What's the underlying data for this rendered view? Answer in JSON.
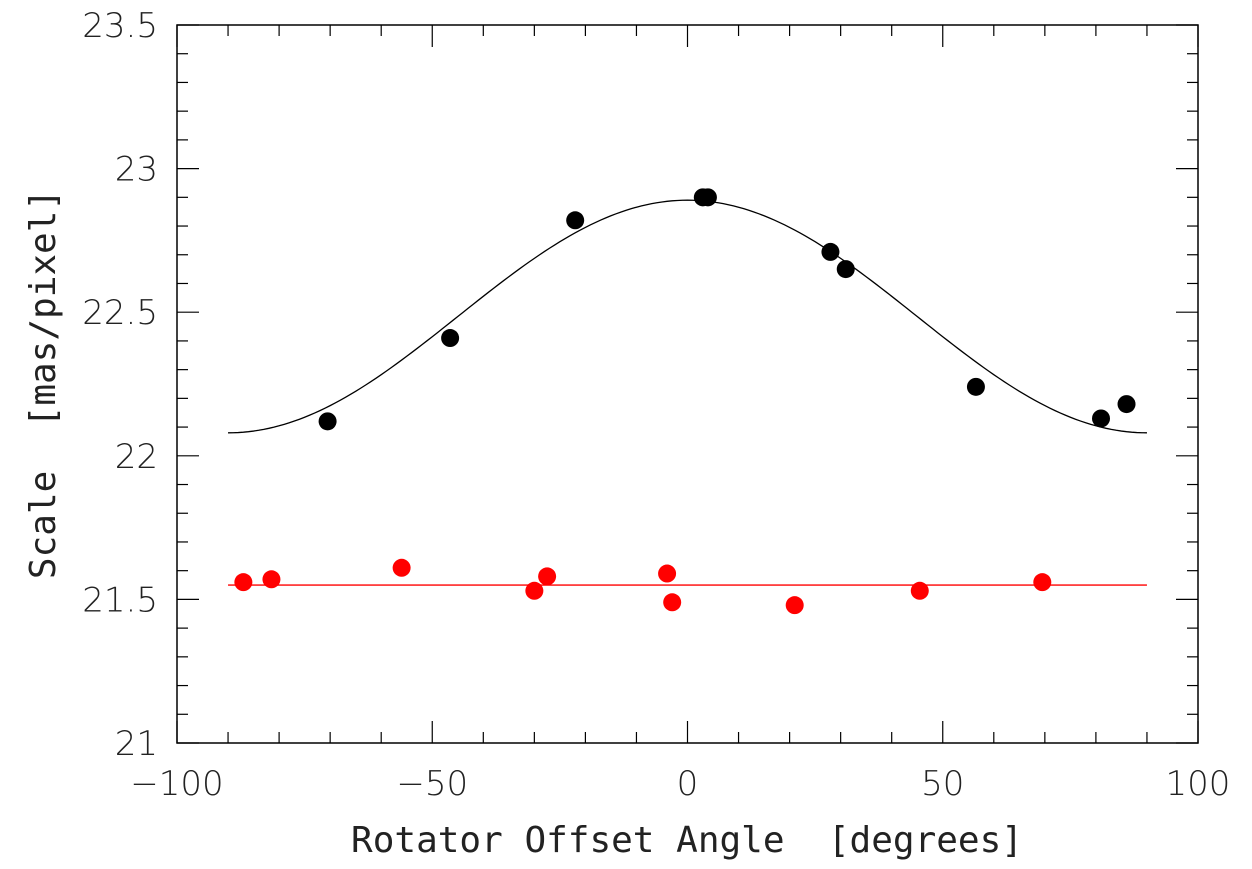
{
  "chart_data": {
    "type": "scatter",
    "title": "",
    "xlabel": "Rotator Offset Angle  [degrees]",
    "ylabel": "Scale  [mas/pixel]",
    "xlim": [
      -100,
      100
    ],
    "ylim": [
      21,
      23.5
    ],
    "x_ticks": [
      -100,
      -50,
      0,
      50,
      100
    ],
    "x_tick_labels": [
      "−100",
      "−50",
      "0",
      "50",
      "100"
    ],
    "y_ticks": [
      21,
      21.5,
      22,
      22.5,
      23,
      23.5
    ],
    "y_tick_labels": [
      "21",
      "21.5",
      "22",
      "22.5",
      "23",
      "23.5"
    ],
    "grid": false,
    "legend": "none",
    "series": [
      {
        "color": "#000000",
        "points": [
          [
            -70.5,
            22.12
          ],
          [
            -46.5,
            22.41
          ],
          [
            -22,
            22.82
          ],
          [
            3,
            22.9
          ],
          [
            4,
            22.9
          ],
          [
            28,
            22.71
          ],
          [
            31,
            22.65
          ],
          [
            56.5,
            22.24
          ],
          [
            81,
            22.13
          ],
          [
            86,
            22.18
          ]
        ],
        "fit": {
          "kind": "cosine",
          "mean": 22.485,
          "amplitude": 0.405,
          "x_range": [
            -90,
            90
          ]
        }
      },
      {
        "color": "#ff0000",
        "points": [
          [
            -87,
            21.56
          ],
          [
            -81.5,
            21.57
          ],
          [
            -56,
            21.61
          ],
          [
            -30,
            21.53
          ],
          [
            -27.5,
            21.58
          ],
          [
            -4,
            21.59
          ],
          [
            -3,
            21.49
          ],
          [
            21,
            21.48
          ],
          [
            45.5,
            21.53
          ],
          [
            69.5,
            21.56
          ]
        ],
        "fit": {
          "kind": "constant",
          "value": 21.55,
          "x_range": [
            -90,
            90
          ]
        }
      }
    ]
  }
}
